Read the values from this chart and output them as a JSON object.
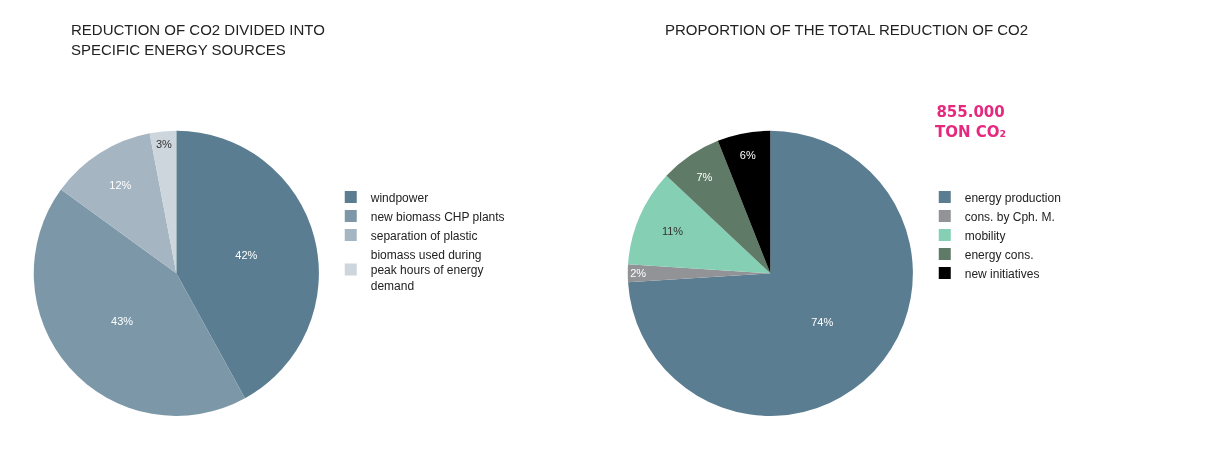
{
  "chart_data": [
    {
      "type": "pie",
      "title": "REDUCTION OF CO2 DIVIDED INTO SPECIFIC ENERGY SOURCES",
      "categories": [
        "windpower",
        "new biomass CHP plants",
        "separation of plastic",
        "biomass used during peak hours of energy demand"
      ],
      "values": [
        42,
        43,
        12,
        3
      ],
      "colors": [
        "#5a7d91",
        "#7b97a8",
        "#a5b6c2",
        "#cdd6dd"
      ],
      "value_labels": [
        "42%",
        "43%",
        "12%",
        "3%"
      ],
      "legend": "right"
    },
    {
      "type": "pie",
      "title": "PROPORTION OF THE TOTAL REDUCTION OF CO2",
      "categories": [
        "energy production",
        "cons. by Cph. M.",
        "mobility",
        "energy cons.",
        "new initiatives"
      ],
      "values": [
        74,
        2,
        11,
        7,
        6
      ],
      "colors": [
        "#5a7d91",
        "#929396",
        "#85cfb5",
        "#5f7a66",
        "#000000"
      ],
      "value_labels": [
        "74%",
        "2%",
        "11%",
        "7%",
        "6%"
      ],
      "legend": "right",
      "annotations": [
        "855.000 TON CO₂"
      ]
    }
  ]
}
